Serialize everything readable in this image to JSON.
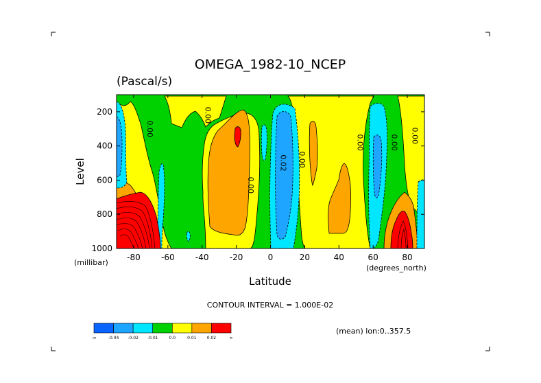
{
  "chart_data": {
    "type": "heatmap",
    "title": "OMEGA_1982-10_NCEP",
    "units": "(Pascal/s)",
    "xlabel": "Latitude",
    "ylabel": "Level",
    "x_unit_label": "(degrees_north)",
    "y_unit_label": "(millibar)",
    "xlim": [
      -90,
      90
    ],
    "ylim": [
      1000,
      100
    ],
    "x_ticks": [
      -80,
      -60,
      -40,
      -20,
      0,
      20,
      40,
      60,
      80
    ],
    "x_tick_labels": [
      "-80",
      "-60",
      "-40",
      "-20",
      "0",
      "20",
      "40",
      "60",
      "80"
    ],
    "y_ticks": [
      200,
      400,
      600,
      800,
      1000
    ],
    "y_tick_labels": [
      "200",
      "400",
      "600",
      "800",
      "1000"
    ],
    "contour_interval_text": "CONTOUR INTERVAL = 1.000E-02",
    "mean_text": "(mean) lon:0..357.5",
    "contour_labels": [
      {
        "text": "0.00",
        "lat": -72,
        "lev": 300
      },
      {
        "text": "0.00",
        "lat": -38,
        "lev": 220
      },
      {
        "text": "0.00",
        "lat": -13,
        "lev": 630
      },
      {
        "text": "0.02",
        "lat": 6,
        "lev": 500
      },
      {
        "text": "0.00",
        "lat": 17,
        "lev": 480
      },
      {
        "text": "0.00",
        "lat": 51,
        "lev": 380
      },
      {
        "text": "0.00",
        "lat": 71,
        "lev": 380
      },
      {
        "text": "0.00",
        "lat": 83,
        "lev": 340
      }
    ],
    "colorbar": {
      "labels": [
        "-∞",
        "-0.04",
        "-0.02",
        "-0.01",
        "0.0",
        "0.01",
        "0.02",
        "∞"
      ],
      "colors": [
        "#0a64ff",
        "#1ea5ff",
        "#00e6ff",
        "#00d200",
        "#ffff00",
        "#ffa500",
        "#ff0000"
      ]
    },
    "regions": [
      {
        "level_class": "negative",
        "color": "#1ea5ff",
        "description_lat_range": [
          -90,
          -84
        ],
        "lev_range": [
          150,
          620
        ]
      },
      {
        "level_class": "negative",
        "color": "#00e6ff",
        "description_lat_range": [
          -64,
          -62
        ],
        "lev_range": [
          560,
          1000
        ]
      },
      {
        "level_class": "positive",
        "color": "#ffa500",
        "description_lat_range": [
          -34,
          -10
        ],
        "lev_range": [
          180,
          900
        ]
      },
      {
        "level_class": "positive",
        "color": "#ff0000",
        "description_lat_range": [
          -21,
          -18
        ],
        "lev_range": [
          290,
          420
        ]
      },
      {
        "level_class": "negative",
        "color": "#00e6ff",
        "description_lat_range": [
          -5,
          -2
        ],
        "lev_range": [
          270,
          580
        ]
      },
      {
        "level_class": "negative",
        "color": "#1ea5ff",
        "description_lat_range": [
          5,
          12
        ],
        "lev_range": [
          180,
          920
        ]
      },
      {
        "level_class": "positive",
        "color": "#ffa500",
        "description_lat_range": [
          23,
          29
        ],
        "lev_range": [
          250,
          600
        ]
      },
      {
        "level_class": "positive",
        "color": "#ffa500",
        "description_lat_range": [
          35,
          48
        ],
        "lev_range": [
          420,
          920
        ]
      },
      {
        "level_class": "negative",
        "color": "#00e6ff",
        "description_lat_range": [
          60,
          68
        ],
        "lev_range": [
          200,
          900
        ]
      },
      {
        "level_class": "positive",
        "color": "#ff0000",
        "description_lat_range": [
          76,
          90
        ],
        "lev_range": [
          700,
          1000
        ]
      },
      {
        "level_class": "positive",
        "color": "#ff0000",
        "description_lat_range": [
          -90,
          -68
        ],
        "lev_range": [
          600,
          1000
        ]
      }
    ]
  }
}
